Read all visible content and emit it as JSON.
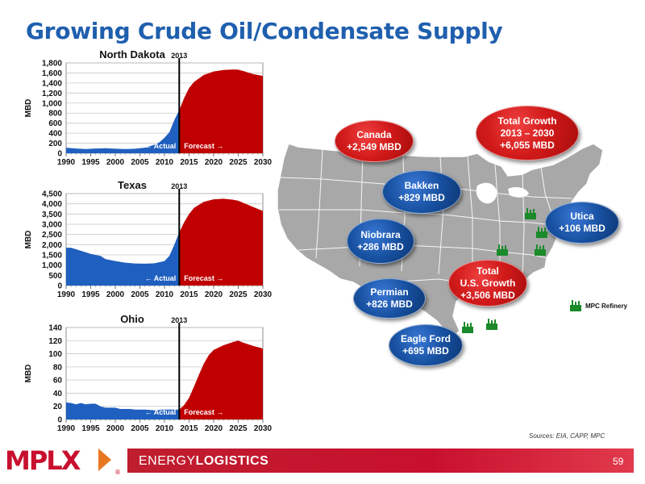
{
  "title": "Growing Crude Oil/Condensate Supply",
  "colors": {
    "actual": "#1f5fbf",
    "forecast": "#c00000",
    "title": "#1f5fae",
    "accent": "#c8102e"
  },
  "chart_data": [
    {
      "type": "area",
      "title": "North Dakota",
      "ylabel": "MBD",
      "ylim": [
        0,
        1800
      ],
      "yticks": [
        0,
        200,
        400,
        600,
        800,
        1000,
        1200,
        1400,
        1600,
        1800
      ],
      "ytick_labels": [
        "0",
        "200",
        "400",
        "600",
        "800",
        "1,000",
        "1,200",
        "1,400",
        "1,600",
        "1,800"
      ],
      "xlim": [
        1990,
        2030
      ],
      "xticks": [
        1990,
        1995,
        2000,
        2005,
        2010,
        2015,
        2020,
        2025,
        2030
      ],
      "divider_year": 2013,
      "divider_label": "2013",
      "actual_label": "← Actual",
      "forecast_label": "Forecast →",
      "grid": true,
      "series": [
        {
          "name": "Actual",
          "x": [
            1990,
            1992,
            1994,
            1996,
            1998,
            2000,
            2002,
            2004,
            2006,
            2008,
            2009,
            2010,
            2011,
            2012,
            2013
          ],
          "values": [
            110,
            95,
            85,
            95,
            100,
            90,
            85,
            90,
            110,
            170,
            220,
            310,
            420,
            660,
            860
          ]
        },
        {
          "name": "Forecast",
          "x": [
            2013,
            2014,
            2015,
            2016,
            2018,
            2020,
            2022,
            2024,
            2025,
            2026,
            2028,
            2030
          ],
          "values": [
            860,
            1100,
            1300,
            1420,
            1560,
            1630,
            1660,
            1670,
            1665,
            1640,
            1580,
            1540
          ]
        }
      ]
    },
    {
      "type": "area",
      "title": "Texas",
      "ylabel": "MBD",
      "ylim": [
        0,
        4500
      ],
      "yticks": [
        0,
        500,
        1000,
        1500,
        2000,
        2500,
        3000,
        3500,
        4000,
        4500
      ],
      "ytick_labels": [
        "0",
        "500",
        "1,000",
        "1,500",
        "2,000",
        "2,500",
        "3,000",
        "3,500",
        "4,000",
        "4,500"
      ],
      "xlim": [
        1990,
        2030
      ],
      "xticks": [
        1990,
        1995,
        2000,
        2005,
        2010,
        2015,
        2020,
        2025,
        2030
      ],
      "divider_year": 2013,
      "divider_label": "2013",
      "actual_label": "← Actual",
      "forecast_label": "Forecast →",
      "grid": true,
      "series": [
        {
          "name": "Actual",
          "x": [
            1990,
            1991,
            1993,
            1995,
            1997,
            1998,
            2000,
            2002,
            2004,
            2006,
            2008,
            2010,
            2011,
            2012,
            2013
          ],
          "values": [
            1850,
            1850,
            1700,
            1550,
            1450,
            1300,
            1200,
            1120,
            1080,
            1070,
            1090,
            1200,
            1450,
            2000,
            2600
          ]
        },
        {
          "name": "Forecast",
          "x": [
            2013,
            2014,
            2015,
            2016,
            2018,
            2020,
            2022,
            2024,
            2025,
            2026,
            2028,
            2030
          ],
          "values": [
            2600,
            3100,
            3500,
            3800,
            4100,
            4220,
            4250,
            4200,
            4150,
            4050,
            3850,
            3650
          ]
        }
      ]
    },
    {
      "type": "area",
      "title": "Ohio",
      "ylabel": "MBD",
      "ylim": [
        0,
        140
      ],
      "yticks": [
        0,
        20,
        40,
        60,
        80,
        100,
        120,
        140
      ],
      "ytick_labels": [
        "0",
        "20",
        "40",
        "60",
        "80",
        "100",
        "120",
        "140"
      ],
      "xlim": [
        1990,
        2030
      ],
      "xticks": [
        1990,
        1995,
        2000,
        2005,
        2010,
        2015,
        2020,
        2025,
        2030
      ],
      "divider_year": 2013,
      "divider_label": "2013",
      "actual_label": "← Actual",
      "forecast_label": "Forecast →",
      "grid": true,
      "series": [
        {
          "name": "Actual",
          "x": [
            1990,
            1991,
            1992,
            1993,
            1994,
            1995,
            1996,
            1997,
            1998,
            1999,
            2000,
            2001,
            2002,
            2003,
            2004,
            2006,
            2008,
            2010,
            2012,
            2013
          ],
          "values": [
            26,
            25,
            23,
            25,
            23,
            24,
            24,
            20,
            18,
            18,
            18,
            16,
            16,
            16,
            15,
            15,
            14,
            15,
            15,
            15
          ]
        },
        {
          "name": "Forecast",
          "x": [
            2013,
            2014,
            2015,
            2016,
            2017,
            2018,
            2019,
            2020,
            2022,
            2024,
            2025,
            2026,
            2028,
            2030
          ],
          "values": [
            15,
            22,
            33,
            50,
            68,
            85,
            98,
            106,
            113,
            118,
            120,
            117,
            112,
            108
          ]
        }
      ]
    }
  ],
  "bubbles": [
    {
      "name": "canada",
      "color": "red",
      "lines": [
        "Canada",
        "+2,549 MBD"
      ]
    },
    {
      "name": "total-growth",
      "color": "red",
      "lines": [
        "Total Growth",
        "2013 – 2030",
        "+6,055 MBD"
      ]
    },
    {
      "name": "bakken",
      "color": "blue",
      "lines": [
        "Bakken",
        "+829 MBD"
      ]
    },
    {
      "name": "utica",
      "color": "blue",
      "lines": [
        "Utica",
        "+106 MBD"
      ]
    },
    {
      "name": "niobrara",
      "color": "blue",
      "lines": [
        "Niobrara",
        "+286 MBD"
      ]
    },
    {
      "name": "total-us-growth",
      "color": "red",
      "lines": [
        "Total",
        "U.S. Growth",
        "+3,506 MBD"
      ]
    },
    {
      "name": "permian",
      "color": "blue",
      "lines": [
        "Permian",
        "+826 MBD"
      ]
    },
    {
      "name": "eagle-ford",
      "color": "blue",
      "lines": [
        "Eagle Ford",
        "+695 MBD"
      ]
    }
  ],
  "refinery_legend": "MPC Refinery",
  "refinery_icon": "refinery-icon",
  "sources": "Sources:  EIA, CAPP, MPC",
  "footer": {
    "logo_text": "MPLX",
    "brand_light": "ENERGY",
    "brand_bold": "LOGISTICS",
    "page_number": "59"
  }
}
